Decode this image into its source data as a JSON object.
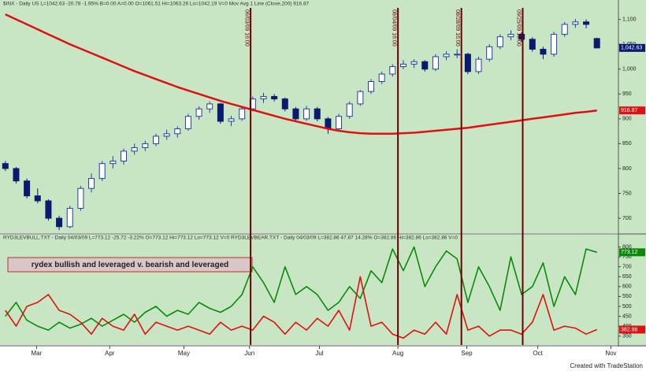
{
  "chart_data": [
    {
      "type": "candlestick",
      "header": "$INX - Daily  US  L=1042.63  -20.78  -1.95%  B=0.00  A=0.00  O=1061.51  Hi=1063.26  Lo=1042.19  V=0   Mov Avg 1 Line (Close,200)  916.87",
      "xlim": [
        -0.5,
        57
      ],
      "ylim": [
        670,
        1120
      ],
      "yticks": [
        700,
        750,
        800,
        850,
        900,
        950,
        {
          "value": 1000,
          "label": "1,000"
        },
        {
          "value": 1050,
          "label": "1,050"
        },
        {
          "value": 1100,
          "label": "1,100"
        }
      ],
      "up_color": "#1f3fb0",
      "down_color": "#0a1a6e",
      "open": [
        810,
        800,
        775,
        745,
        735,
        700,
        683,
        720,
        760,
        780,
        810,
        815,
        835,
        842,
        850,
        865,
        870,
        880,
        905,
        920,
        930,
        895,
        900,
        920,
        940,
        945,
        940,
        920,
        900,
        920,
        900,
        880,
        905,
        930,
        955,
        975,
        990,
        1005,
        1010,
        1015,
        1000,
        1025,
        1030,
        1030,
        995,
        1020,
        1045,
        1065,
        1070,
        1060,
        1040,
        1030,
        1070,
        1090,
        1095,
        1061.51
      ],
      "high": [
        815,
        803,
        780,
        760,
        738,
        705,
        725,
        765,
        790,
        815,
        825,
        840,
        850,
        856,
        870,
        878,
        885,
        910,
        925,
        935,
        932,
        906,
        925,
        945,
        952,
        950,
        943,
        924,
        926,
        924,
        904,
        910,
        935,
        958,
        980,
        995,
        1010,
        1018,
        1020,
        1018,
        1030,
        1036,
        1040,
        1033,
        1025,
        1050,
        1070,
        1078,
        1074,
        1064,
        1045,
        1075,
        1095,
        1101,
        1100,
        1063.26
      ],
      "low": [
        795,
        770,
        740,
        730,
        695,
        676,
        680,
        715,
        752,
        775,
        800,
        808,
        828,
        835,
        845,
        858,
        862,
        876,
        898,
        912,
        890,
        885,
        896,
        915,
        932,
        935,
        915,
        895,
        896,
        895,
        870,
        876,
        900,
        926,
        950,
        970,
        985,
        1000,
        1002,
        995,
        996,
        1018,
        1022,
        990,
        990,
        1015,
        1040,
        1058,
        1055,
        1035,
        1020,
        1025,
        1065,
        1083,
        1082,
        1042.19
      ],
      "close": [
        800,
        775,
        745,
        735,
        700,
        683,
        720,
        760,
        780,
        810,
        815,
        835,
        842,
        850,
        865,
        870,
        880,
        905,
        920,
        930,
        895,
        900,
        920,
        940,
        945,
        940,
        920,
        900,
        920,
        900,
        880,
        905,
        930,
        955,
        975,
        990,
        1005,
        1010,
        1015,
        1000,
        1025,
        1030,
        1030,
        995,
        1020,
        1045,
        1065,
        1070,
        1060,
        1040,
        1030,
        1070,
        1090,
        1095,
        1090,
        1042.63
      ],
      "series": [
        {
          "name": "Mov Avg 1 Line (Close,200)",
          "color": "#e01010",
          "values": [
            1110,
            1100,
            1090,
            1080,
            1070,
            1060,
            1050,
            1041,
            1032,
            1023,
            1014,
            1005,
            996,
            988,
            980,
            972,
            964,
            957,
            950,
            943,
            936,
            930,
            924,
            918,
            912,
            906,
            900,
            895,
            890,
            885,
            880,
            876,
            873,
            871,
            870,
            870,
            870,
            871,
            872,
            874,
            876,
            878,
            880,
            882,
            885,
            888,
            891,
            894,
            897,
            900,
            903,
            906,
            909,
            912,
            914,
            916.87
          ]
        }
      ],
      "tags": [
        {
          "value": 1042.63,
          "label": "1,042.63",
          "color": "#0a1a6e"
        },
        {
          "value": 916.87,
          "color": "#e01010"
        }
      ],
      "markers": [
        {
          "x": 22.8,
          "label": "06/03/09 16:00"
        },
        {
          "x": 36.5,
          "label": "08/04/09 16:00"
        },
        {
          "x": 42.4,
          "label": "08/28/09 16:00"
        },
        {
          "x": 48.1,
          "label": "09/25/09 16:00"
        }
      ],
      "marker_color": "#6b0000"
    },
    {
      "type": "line",
      "header": "RYD3LEVBULL.TXT - Daily  04/03/09  L=773.12  -25.72  -3.22%  O=773.12  Hi=773.12  Lo=773.12  V=0   RYD3LEVBEAR.TXT - Daily  04/03/09  L=382.86  47.87  14.28%  O=382.86  Hi=382.86  Lo=382.86  V=0",
      "annotation": "rydex bullish and leveraged v. bearish and leveraged",
      "xlim": [
        -0.5,
        57
      ],
      "ylim": [
        305,
        830
      ],
      "yticks": [
        350,
        400,
        450,
        500,
        550,
        600,
        650,
        700,
        750,
        800
      ],
      "xticks": [
        {
          "value": 2.9,
          "label": "Mar"
        },
        {
          "value": 9.7,
          "label": "Apr"
        },
        {
          "value": 16.6,
          "label": "May"
        },
        {
          "value": 22.7,
          "label": "Jun"
        },
        {
          "value": 29.2,
          "label": "Jul"
        },
        {
          "value": 36.5,
          "label": "Aug"
        },
        {
          "value": 42.9,
          "label": "Sep"
        },
        {
          "value": 49.5,
          "label": "Oct"
        },
        {
          "value": 56.3,
          "label": "Nov"
        }
      ],
      "series": [
        {
          "name": "RYD3LEVBULL.TXT",
          "color": "#0a8a0a",
          "values": [
            450,
            520,
            430,
            400,
            380,
            420,
            390,
            410,
            440,
            400,
            430,
            460,
            420,
            470,
            500,
            450,
            480,
            460,
            520,
            490,
            470,
            500,
            560,
            700,
            620,
            520,
            700,
            560,
            600,
            560,
            480,
            520,
            600,
            540,
            680,
            620,
            790,
            680,
            800,
            600,
            700,
            780,
            740,
            520,
            700,
            600,
            480,
            750,
            560,
            600,
            720,
            500,
            650,
            560,
            790,
            773.12
          ]
        },
        {
          "name": "RYD3LEVBEAR.TXT",
          "color": "#e01010",
          "values": [
            480,
            400,
            500,
            520,
            560,
            480,
            460,
            420,
            360,
            440,
            400,
            380,
            460,
            360,
            420,
            400,
            380,
            400,
            380,
            360,
            420,
            380,
            400,
            380,
            450,
            420,
            360,
            420,
            380,
            440,
            400,
            480,
            380,
            650,
            400,
            420,
            360,
            340,
            380,
            360,
            420,
            360,
            560,
            380,
            400,
            350,
            380,
            380,
            360,
            420,
            560,
            380,
            400,
            390,
            360,
            382.86
          ]
        }
      ],
      "tags": [
        {
          "value": 773.12,
          "color": "#0a8a0a"
        },
        {
          "value": 382.86,
          "color": "#e01010"
        }
      ]
    }
  ],
  "footer": "Created with TradeStation"
}
